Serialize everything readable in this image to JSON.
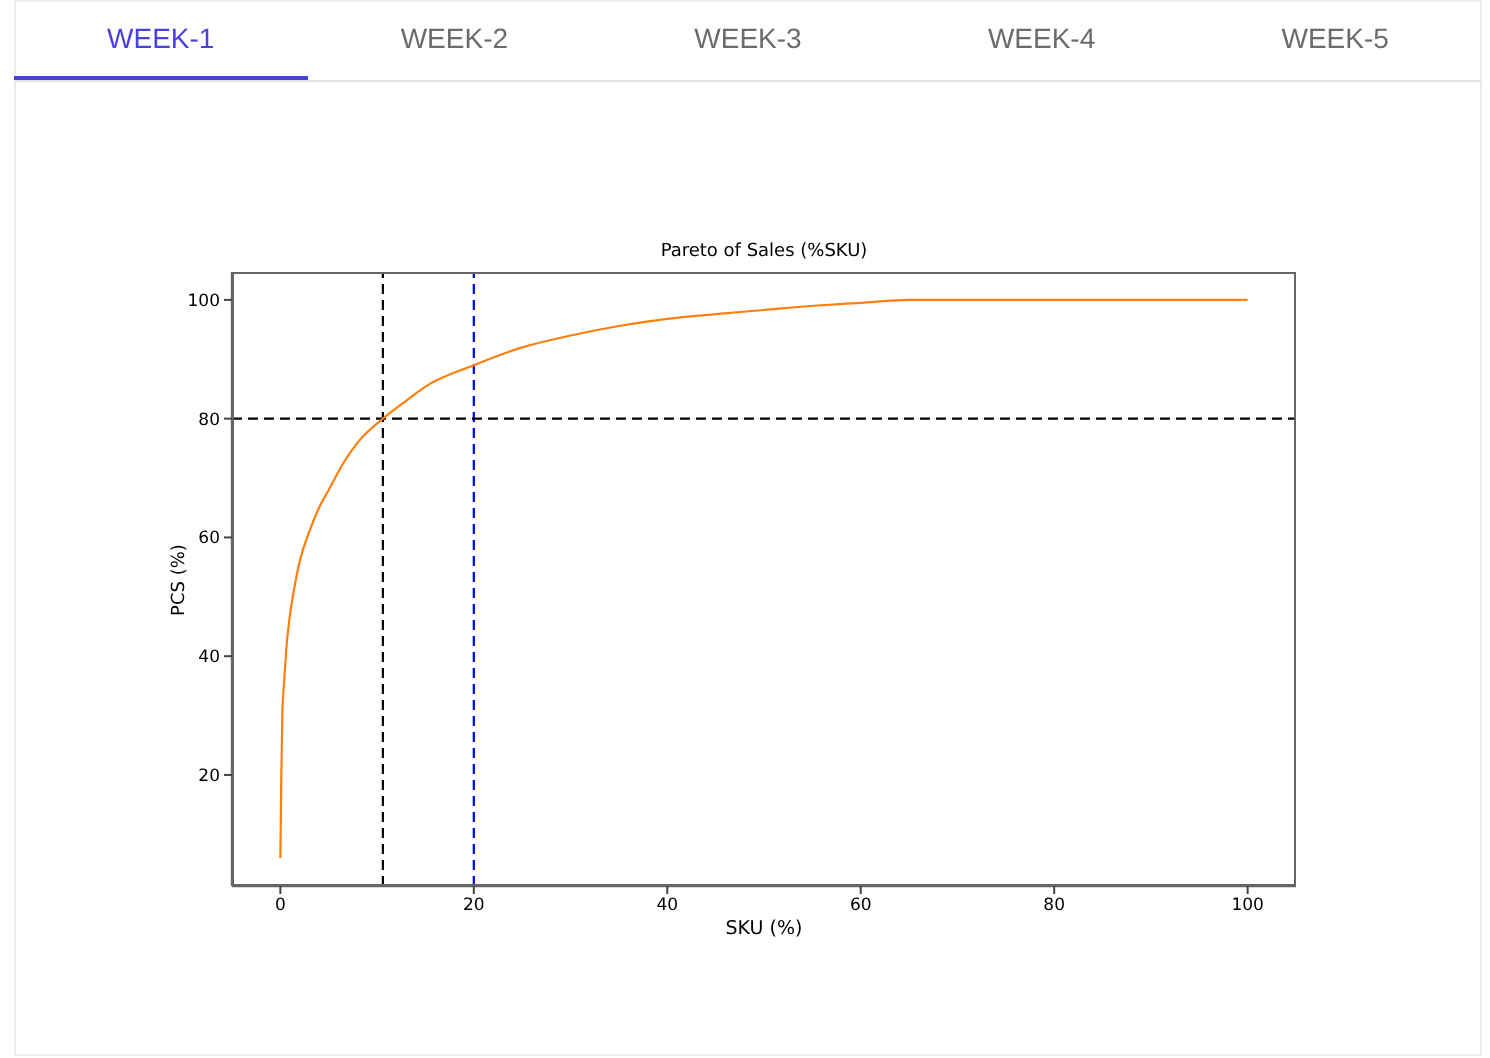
{
  "chart_data": {
    "type": "line",
    "title": "Pareto of Sales (%SKU)",
    "xlabel": "SKU (%)",
    "ylabel": "PCS (%)",
    "annotations": [
      "WEEK-1",
      "WEEK-2",
      "WEEK-3",
      "WEEK-4",
      "WEEK-5"
    ],
    "x": [
      0,
      0.1,
      0.2,
      0.4,
      0.6,
      1,
      1.5,
      2,
      3,
      4,
      5,
      6.5,
      8,
      10.6,
      13,
      15,
      20,
      25,
      30,
      35,
      40,
      45,
      50,
      56,
      60,
      65,
      70,
      80,
      90,
      100
    ],
    "series": [
      {
        "color": "#ff7f0e",
        "values": [
          6,
          20,
          30,
          36,
          41,
          47,
          52,
          56,
          61,
          65,
          68,
          72.5,
          76,
          80,
          83,
          85.4,
          89,
          92,
          94,
          95.6,
          96.8,
          97.6,
          98.3,
          99.1,
          99.5,
          100,
          100,
          100,
          100,
          100
        ]
      }
    ],
    "xlim": [
      -5,
      105
    ],
    "ylim": [
      1.3,
      104.7
    ],
    "xticks": [
      0,
      20,
      40,
      60,
      80,
      100
    ],
    "yticks": [
      20,
      40,
      60,
      80,
      100
    ],
    "grid": false,
    "ref_lines": [
      {
        "axis": "x",
        "value": 10.6,
        "color": "#000000",
        "line_style": "dashed"
      },
      {
        "axis": "x",
        "value": 20,
        "color": "#0000ff",
        "line_style": "dashed"
      },
      {
        "axis": "y",
        "value": 80,
        "color": "#000000",
        "line_style": "dashed"
      }
    ]
  }
}
